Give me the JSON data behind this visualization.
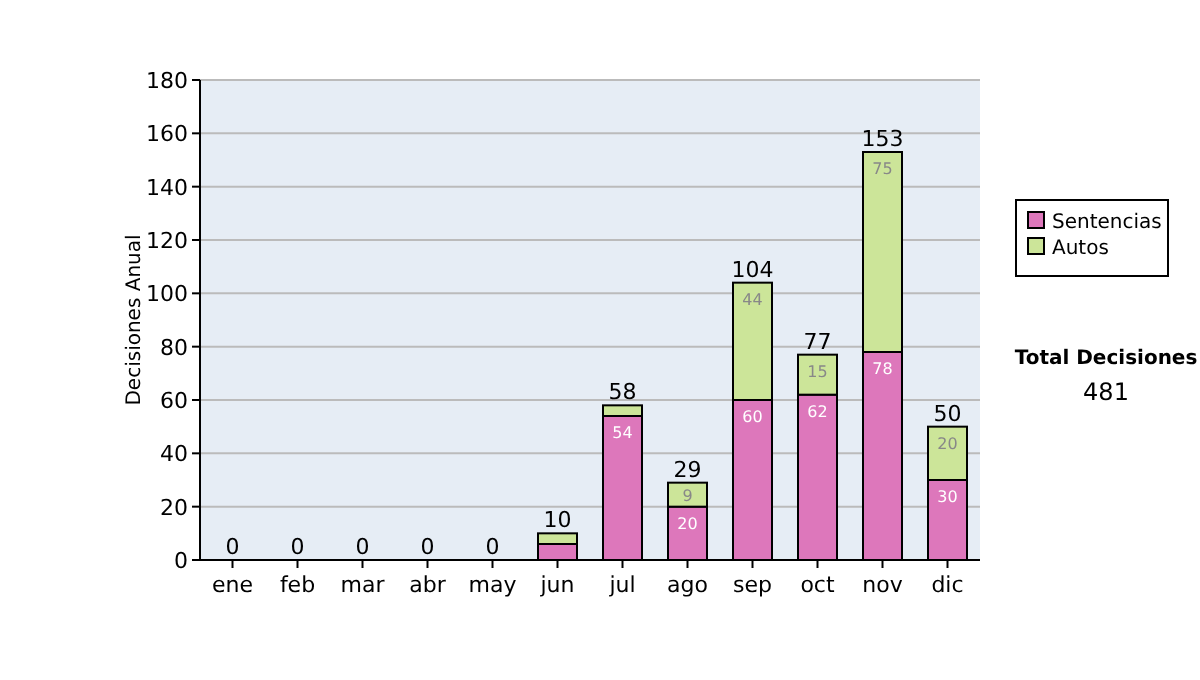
{
  "chart_data": {
    "type": "bar",
    "stacked": true,
    "ylabel": "Decisiones Anual",
    "categories": [
      "ene",
      "feb",
      "mar",
      "abr",
      "may",
      "jun",
      "jul",
      "ago",
      "sep",
      "oct",
      "nov",
      "dic"
    ],
    "series": [
      {
        "name": "Sentencias",
        "color": "#dd77bb",
        "values": [
          0,
          0,
          0,
          0,
          0,
          6,
          54,
          20,
          60,
          62,
          78,
          30
        ],
        "value_labels": [
          null,
          null,
          null,
          null,
          null,
          null,
          "54",
          "20",
          "60",
          "62",
          "78",
          "30"
        ]
      },
      {
        "name": "Autos",
        "color": "#cce599",
        "values": [
          0,
          0,
          0,
          0,
          0,
          4,
          4,
          9,
          44,
          15,
          75,
          20
        ],
        "value_labels": [
          null,
          null,
          null,
          null,
          null,
          null,
          null,
          "9",
          "44",
          "15",
          "75",
          "20"
        ]
      }
    ],
    "totals": [
      "0",
      "0",
      "0",
      "0",
      "0",
      "10",
      "58",
      "29",
      "104",
      "77",
      "153",
      "50"
    ],
    "ylim": [
      0,
      180
    ],
    "yticks": [
      0,
      20,
      40,
      60,
      80,
      100,
      120,
      140,
      160,
      180
    ],
    "grid": "y",
    "legend": "right",
    "annotations": [
      "Total Decisiones",
      "481"
    ]
  }
}
